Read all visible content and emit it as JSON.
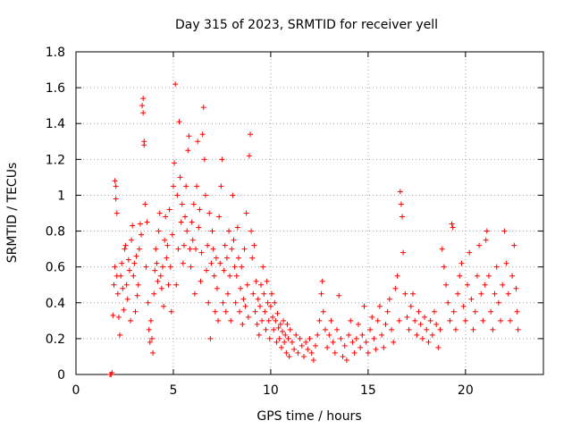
{
  "chart_data": {
    "type": "scatter",
    "title": "Day 315 of 2023, SRMTID for receiver yell",
    "xlabel": "GPS time / hours",
    "ylabel": "SRMTID / TECUs",
    "xlim": [
      0,
      24
    ],
    "ylim": [
      0,
      1.8
    ],
    "xticks": [
      0,
      5,
      10,
      15,
      20
    ],
    "xtick_labels": [
      "0",
      "5",
      "10",
      "15",
      "20"
    ],
    "yticks": [
      0,
      0.2,
      0.4,
      0.6,
      0.8,
      1.0,
      1.2,
      1.4,
      1.6,
      1.8
    ],
    "ytick_labels": [
      "0",
      "0.2",
      "0.4",
      "0.6",
      "0.8",
      "1",
      "1.2",
      "1.4",
      "1.6",
      "1.8"
    ],
    "grid": true,
    "marker": "plus",
    "color": "#ff0000",
    "series": [
      {
        "name": "SRMTID",
        "points": [
          [
            1.75,
            0.0
          ],
          [
            1.8,
            0.0
          ],
          [
            1.85,
            0.01
          ],
          [
            1.9,
            0.33
          ],
          [
            1.95,
            0.5
          ],
          [
            2.0,
            0.6
          ],
          [
            2.0,
            1.08
          ],
          [
            2.05,
            1.05
          ],
          [
            2.05,
            0.98
          ],
          [
            2.1,
            0.9
          ],
          [
            2.1,
            0.55
          ],
          [
            2.15,
            0.45
          ],
          [
            2.2,
            0.32
          ],
          [
            2.25,
            0.22
          ],
          [
            2.3,
            0.55
          ],
          [
            2.35,
            0.62
          ],
          [
            2.4,
            0.48
          ],
          [
            2.45,
            0.36
          ],
          [
            2.5,
            0.7
          ],
          [
            2.55,
            0.72
          ],
          [
            2.6,
            0.5
          ],
          [
            2.65,
            0.42
          ],
          [
            2.7,
            0.64
          ],
          [
            2.75,
            0.58
          ],
          [
            2.8,
            0.3
          ],
          [
            2.85,
            0.75
          ],
          [
            2.9,
            0.83
          ],
          [
            2.95,
            0.55
          ],
          [
            3.0,
            0.62
          ],
          [
            3.05,
            0.35
          ],
          [
            3.1,
            0.66
          ],
          [
            3.15,
            0.44
          ],
          [
            3.2,
            0.5
          ],
          [
            3.25,
            0.7
          ],
          [
            3.3,
            0.84
          ],
          [
            3.35,
            0.78
          ],
          [
            3.4,
            1.5
          ],
          [
            3.45,
            1.54
          ],
          [
            3.45,
            1.46
          ],
          [
            3.5,
            1.3
          ],
          [
            3.5,
            1.28
          ],
          [
            3.55,
            0.95
          ],
          [
            3.6,
            0.6
          ],
          [
            3.65,
            0.85
          ],
          [
            3.7,
            0.4
          ],
          [
            3.75,
            0.25
          ],
          [
            3.8,
            0.18
          ],
          [
            3.85,
            0.3
          ],
          [
            3.9,
            0.2
          ],
          [
            3.95,
            0.12
          ],
          [
            4.0,
            0.45
          ],
          [
            4.05,
            0.58
          ],
          [
            4.1,
            0.7
          ],
          [
            4.15,
            0.62
          ],
          [
            4.2,
            0.52
          ],
          [
            4.25,
            0.8
          ],
          [
            4.3,
            0.9
          ],
          [
            4.35,
            0.55
          ],
          [
            4.4,
            0.48
          ],
          [
            4.45,
            0.6
          ],
          [
            4.5,
            0.38
          ],
          [
            4.55,
            0.75
          ],
          [
            4.6,
            0.88
          ],
          [
            4.65,
            0.65
          ],
          [
            4.7,
            0.72
          ],
          [
            4.75,
            0.5
          ],
          [
            4.8,
            0.92
          ],
          [
            4.85,
            0.6
          ],
          [
            4.9,
            0.35
          ],
          [
            4.95,
            0.78
          ],
          [
            5.0,
            1.05
          ],
          [
            5.05,
            1.18
          ],
          [
            5.1,
            1.62
          ],
          [
            5.15,
            0.5
          ],
          [
            5.2,
            1.0
          ],
          [
            5.25,
            0.7
          ],
          [
            5.3,
            1.41
          ],
          [
            5.35,
            1.1
          ],
          [
            5.4,
            0.85
          ],
          [
            5.45,
            0.95
          ],
          [
            5.5,
            0.62
          ],
          [
            5.55,
            0.72
          ],
          [
            5.6,
            0.88
          ],
          [
            5.65,
            1.05
          ],
          [
            5.7,
            0.8
          ],
          [
            5.75,
            1.25
          ],
          [
            5.8,
            1.33
          ],
          [
            5.85,
            0.7
          ],
          [
            5.9,
            0.6
          ],
          [
            5.95,
            0.85
          ],
          [
            6.0,
            0.75
          ],
          [
            6.05,
            0.95
          ],
          [
            6.1,
            0.45
          ],
          [
            6.15,
            0.7
          ],
          [
            6.2,
            1.05
          ],
          [
            6.25,
            1.3
          ],
          [
            6.3,
            0.82
          ],
          [
            6.35,
            0.92
          ],
          [
            6.4,
            0.52
          ],
          [
            6.45,
            0.68
          ],
          [
            6.5,
            1.34
          ],
          [
            6.55,
            1.49
          ],
          [
            6.6,
            1.2
          ],
          [
            6.65,
            1.0
          ],
          [
            6.7,
            0.58
          ],
          [
            6.75,
            0.72
          ],
          [
            6.8,
            0.4
          ],
          [
            6.85,
            0.9
          ],
          [
            6.9,
            0.2
          ],
          [
            6.95,
            0.62
          ],
          [
            7.0,
            0.8
          ],
          [
            7.05,
            0.7
          ],
          [
            7.1,
            0.55
          ],
          [
            7.15,
            0.35
          ],
          [
            7.2,
            0.65
          ],
          [
            7.25,
            0.48
          ],
          [
            7.3,
            0.3
          ],
          [
            7.35,
            0.88
          ],
          [
            7.4,
            0.62
          ],
          [
            7.45,
            1.05
          ],
          [
            7.5,
            1.2
          ],
          [
            7.55,
            0.4
          ],
          [
            7.6,
            0.58
          ],
          [
            7.65,
            0.72
          ],
          [
            7.7,
            0.35
          ],
          [
            7.75,
            0.65
          ],
          [
            7.8,
            0.45
          ],
          [
            7.85,
            0.8
          ],
          [
            7.9,
            0.55
          ],
          [
            7.95,
            0.3
          ],
          [
            8.0,
            0.7
          ],
          [
            8.05,
            1.0
          ],
          [
            8.1,
            0.75
          ],
          [
            8.15,
            0.6
          ],
          [
            8.2,
            0.4
          ],
          [
            8.25,
            0.55
          ],
          [
            8.3,
            0.82
          ],
          [
            8.35,
            0.65
          ],
          [
            8.4,
            0.35
          ],
          [
            8.45,
            0.48
          ],
          [
            8.5,
            0.6
          ],
          [
            8.55,
            0.28
          ],
          [
            8.6,
            0.42
          ],
          [
            8.65,
            0.7
          ],
          [
            8.7,
            0.38
          ],
          [
            8.75,
            0.9
          ],
          [
            8.8,
            0.5
          ],
          [
            8.85,
            0.32
          ],
          [
            8.9,
            1.22
          ],
          [
            8.95,
            1.34
          ],
          [
            9.0,
            0.8
          ],
          [
            9.05,
            0.65
          ],
          [
            9.1,
            0.45
          ],
          [
            9.15,
            0.72
          ],
          [
            9.2,
            0.35
          ],
          [
            9.25,
            0.52
          ],
          [
            9.3,
            0.28
          ],
          [
            9.35,
            0.42
          ],
          [
            9.4,
            0.22
          ],
          [
            9.45,
            0.38
          ],
          [
            9.5,
            0.5
          ],
          [
            9.55,
            0.3
          ],
          [
            9.6,
            0.6
          ],
          [
            9.65,
            0.45
          ],
          [
            9.7,
            0.35
          ],
          [
            9.75,
            0.25
          ],
          [
            9.8,
            0.52
          ],
          [
            9.85,
            0.4
          ],
          [
            9.9,
            0.3
          ],
          [
            9.95,
            0.2
          ],
          [
            10.0,
            0.38
          ],
          [
            10.05,
            0.45
          ],
          [
            10.1,
            0.32
          ],
          [
            10.15,
            0.25
          ],
          [
            10.2,
            0.4
          ],
          [
            10.25,
            0.3
          ],
          [
            10.3,
            0.18
          ],
          [
            10.35,
            0.34
          ],
          [
            10.4,
            0.26
          ],
          [
            10.45,
            0.2
          ],
          [
            10.5,
            0.28
          ],
          [
            10.55,
            0.15
          ],
          [
            10.6,
            0.24
          ],
          [
            10.65,
            0.3
          ],
          [
            10.7,
            0.18
          ],
          [
            10.75,
            0.22
          ],
          [
            10.8,
            0.12
          ],
          [
            10.85,
            0.28
          ],
          [
            10.9,
            0.2
          ],
          [
            10.95,
            0.1
          ],
          [
            11.0,
            0.25
          ],
          [
            11.1,
            0.18
          ],
          [
            11.2,
            0.14
          ],
          [
            11.3,
            0.22
          ],
          [
            11.4,
            0.12
          ],
          [
            11.5,
            0.2
          ],
          [
            11.6,
            0.16
          ],
          [
            11.7,
            0.1
          ],
          [
            11.8,
            0.18
          ],
          [
            11.9,
            0.14
          ],
          [
            12.0,
            0.2
          ],
          [
            12.1,
            0.12
          ],
          [
            12.2,
            0.08
          ],
          [
            12.3,
            0.16
          ],
          [
            12.4,
            0.22
          ],
          [
            12.5,
            0.3
          ],
          [
            12.6,
            0.45
          ],
          [
            12.65,
            0.52
          ],
          [
            12.7,
            0.35
          ],
          [
            12.8,
            0.25
          ],
          [
            12.9,
            0.15
          ],
          [
            13.0,
            0.22
          ],
          [
            13.1,
            0.3
          ],
          [
            13.2,
            0.18
          ],
          [
            13.3,
            0.12
          ],
          [
            13.4,
            0.25
          ],
          [
            13.5,
            0.44
          ],
          [
            13.6,
            0.2
          ],
          [
            13.7,
            0.1
          ],
          [
            13.8,
            0.16
          ],
          [
            13.9,
            0.08
          ],
          [
            14.0,
            0.22
          ],
          [
            14.1,
            0.3
          ],
          [
            14.2,
            0.18
          ],
          [
            14.3,
            0.12
          ],
          [
            14.4,
            0.2
          ],
          [
            14.5,
            0.28
          ],
          [
            14.6,
            0.15
          ],
          [
            14.7,
            0.22
          ],
          [
            14.8,
            0.38
          ],
          [
            14.9,
            0.18
          ],
          [
            15.0,
            0.12
          ],
          [
            15.1,
            0.25
          ],
          [
            15.2,
            0.32
          ],
          [
            15.3,
            0.2
          ],
          [
            15.4,
            0.14
          ],
          [
            15.5,
            0.3
          ],
          [
            15.6,
            0.38
          ],
          [
            15.7,
            0.22
          ],
          [
            15.8,
            0.15
          ],
          [
            15.9,
            0.28
          ],
          [
            16.0,
            0.35
          ],
          [
            16.1,
            0.42
          ],
          [
            16.2,
            0.25
          ],
          [
            16.3,
            0.18
          ],
          [
            16.4,
            0.48
          ],
          [
            16.5,
            0.55
          ],
          [
            16.6,
            0.3
          ],
          [
            16.65,
            1.02
          ],
          [
            16.7,
            0.95
          ],
          [
            16.75,
            0.88
          ],
          [
            16.8,
            0.68
          ],
          [
            16.9,
            0.45
          ],
          [
            17.0,
            0.32
          ],
          [
            17.1,
            0.25
          ],
          [
            17.2,
            0.38
          ],
          [
            17.3,
            0.45
          ],
          [
            17.4,
            0.3
          ],
          [
            17.5,
            0.22
          ],
          [
            17.6,
            0.35
          ],
          [
            17.7,
            0.28
          ],
          [
            17.8,
            0.2
          ],
          [
            17.9,
            0.32
          ],
          [
            18.0,
            0.25
          ],
          [
            18.1,
            0.18
          ],
          [
            18.2,
            0.3
          ],
          [
            18.3,
            0.22
          ],
          [
            18.4,
            0.35
          ],
          [
            18.5,
            0.28
          ],
          [
            18.6,
            0.15
          ],
          [
            18.7,
            0.25
          ],
          [
            18.8,
            0.7
          ],
          [
            18.9,
            0.6
          ],
          [
            19.0,
            0.5
          ],
          [
            19.1,
            0.4
          ],
          [
            19.2,
            0.3
          ],
          [
            19.3,
            0.84
          ],
          [
            19.35,
            0.82
          ],
          [
            19.4,
            0.35
          ],
          [
            19.5,
            0.25
          ],
          [
            19.6,
            0.45
          ],
          [
            19.7,
            0.55
          ],
          [
            19.8,
            0.62
          ],
          [
            19.9,
            0.38
          ],
          [
            20.0,
            0.3
          ],
          [
            20.1,
            0.5
          ],
          [
            20.2,
            0.68
          ],
          [
            20.3,
            0.42
          ],
          [
            20.4,
            0.25
          ],
          [
            20.5,
            0.35
          ],
          [
            20.6,
            0.55
          ],
          [
            20.7,
            0.72
          ],
          [
            20.8,
            0.45
          ],
          [
            20.9,
            0.3
          ],
          [
            21.0,
            0.5
          ],
          [
            21.05,
            0.75
          ],
          [
            21.1,
            0.8
          ],
          [
            21.2,
            0.55
          ],
          [
            21.3,
            0.35
          ],
          [
            21.4,
            0.25
          ],
          [
            21.5,
            0.45
          ],
          [
            21.6,
            0.6
          ],
          [
            21.7,
            0.4
          ],
          [
            21.8,
            0.3
          ],
          [
            21.9,
            0.5
          ],
          [
            22.0,
            0.8
          ],
          [
            22.1,
            0.62
          ],
          [
            22.2,
            0.45
          ],
          [
            22.3,
            0.3
          ],
          [
            22.4,
            0.55
          ],
          [
            22.5,
            0.72
          ],
          [
            22.6,
            0.48
          ],
          [
            22.65,
            0.35
          ],
          [
            22.7,
            0.25
          ]
        ]
      }
    ]
  }
}
